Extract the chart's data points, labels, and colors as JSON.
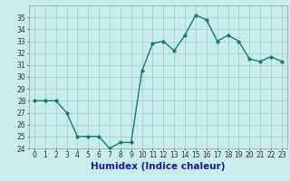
{
  "xlabel": "Humidex (Indice chaleur)",
  "x": [
    0,
    1,
    2,
    3,
    4,
    5,
    6,
    7,
    8,
    9,
    10,
    11,
    12,
    13,
    14,
    15,
    16,
    17,
    18,
    19,
    20,
    21,
    22,
    23
  ],
  "y": [
    28,
    28,
    28,
    27,
    25,
    25,
    25,
    24,
    24.5,
    24.5,
    30.5,
    32.8,
    33,
    32.2,
    33.5,
    35.2,
    34.8,
    33,
    33.5,
    33,
    31.5,
    31.3,
    31.7,
    31.3
  ],
  "line_color": "#1a7a6e",
  "marker_color": "#1a7a6e",
  "bg_color": "#c8ecea",
  "grid_color": "#a0ccc8",
  "ylim": [
    24,
    36
  ],
  "xlim": [
    -0.5,
    23.5
  ],
  "yticks": [
    24,
    25,
    26,
    27,
    28,
    29,
    30,
    31,
    32,
    33,
    34,
    35
  ],
  "xticks": [
    0,
    1,
    2,
    3,
    4,
    5,
    6,
    7,
    8,
    9,
    10,
    11,
    12,
    13,
    14,
    15,
    16,
    17,
    18,
    19,
    20,
    21,
    22,
    23
  ],
  "tick_fontsize": 5.5,
  "xlabel_fontsize": 7.5,
  "linewidth": 1.0,
  "markersize": 2.0
}
